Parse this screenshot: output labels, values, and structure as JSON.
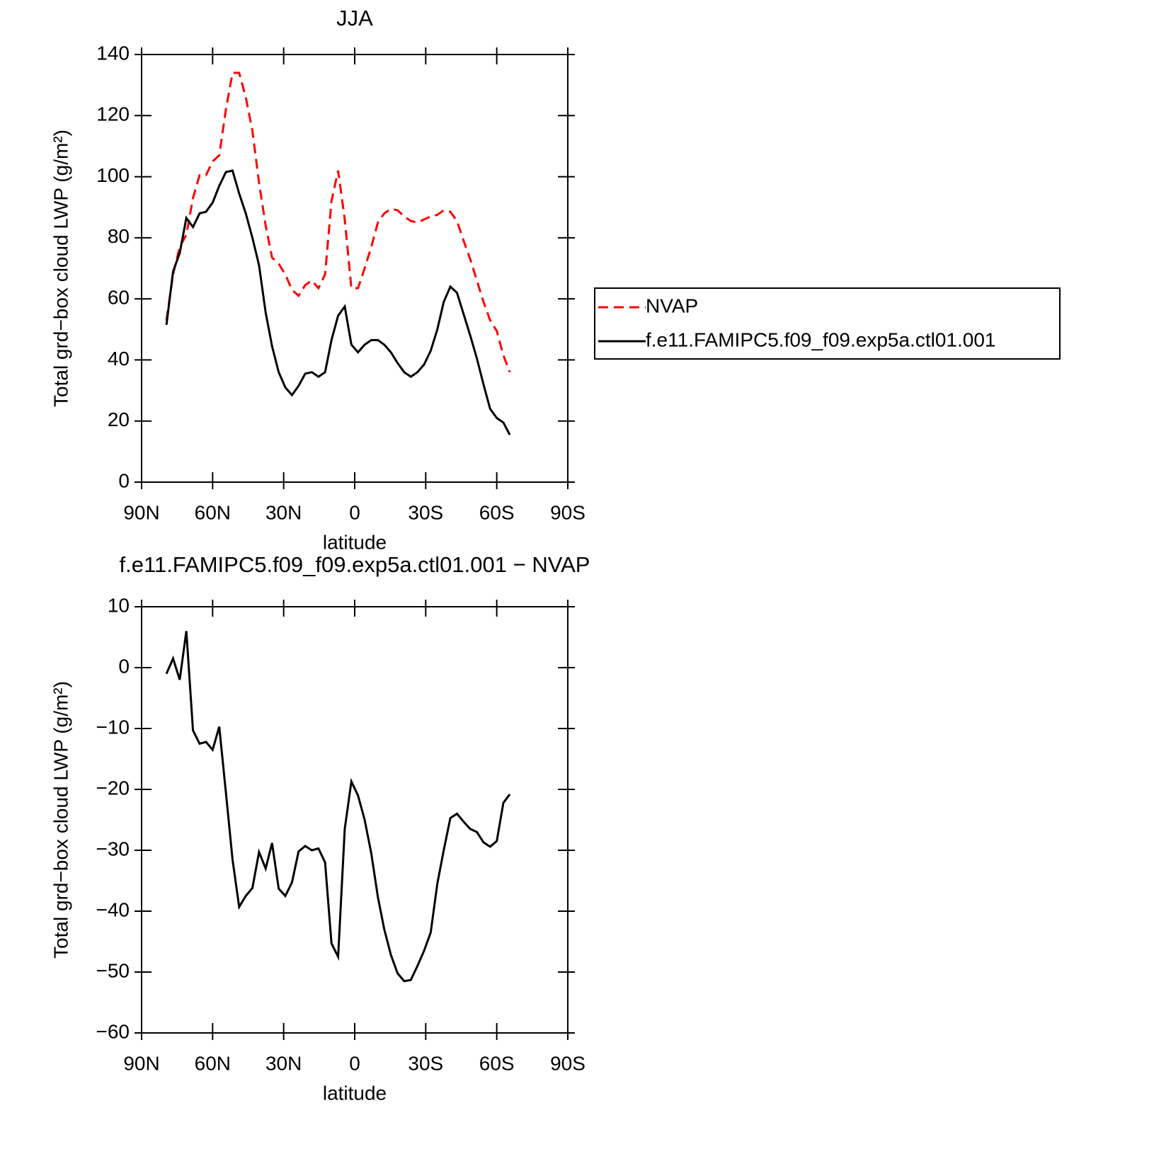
{
  "chart_data": [
    {
      "type": "line",
      "title": "JJA",
      "xlabel": "latitude",
      "ylabel": "Total grd−box cloud LWP (g/m²)",
      "x": [
        79.5,
        76.7,
        73.9,
        71.1,
        68.3,
        65.5,
        62.8,
        60.0,
        57.2,
        54.4,
        51.6,
        48.8,
        46.0,
        43.2,
        40.4,
        37.6,
        34.9,
        32.1,
        29.3,
        26.5,
        23.7,
        20.9,
        18.1,
        15.3,
        12.5,
        9.8,
        7.0,
        4.2,
        1.4,
        -1.4,
        -4.2,
        -7.0,
        -9.8,
        -12.5,
        -15.3,
        -18.1,
        -20.9,
        -23.7,
        -26.5,
        -29.3,
        -32.1,
        -34.9,
        -37.6,
        -40.4,
        -43.2,
        -46.0,
        -48.8,
        -51.6,
        -54.4,
        -57.2,
        -60.0,
        -62.8,
        -65.5
      ],
      "series": [
        {
          "name": "NVAP",
          "color": "#ff0000",
          "dash": true,
          "values": [
            53,
            68,
            77,
            81,
            93,
            100.5,
            100.5,
            105,
            107,
            122,
            134,
            134,
            126,
            115,
            98,
            84,
            73.5,
            71.5,
            68,
            63,
            61,
            64.5,
            66,
            63.5,
            68,
            92,
            102,
            86,
            63.5,
            63.5,
            70,
            77,
            85,
            88,
            89.5,
            89,
            87,
            85.5,
            85,
            86,
            87,
            87.5,
            89,
            88.5,
            85.5,
            79,
            73,
            66,
            59,
            53,
            49.5,
            41.5,
            36
          ]
        },
        {
          "name": "f.e11.FAMIPC5.f09_f09.exp5a.ctl01.001",
          "color": "#000000",
          "dash": false,
          "values": [
            51.5,
            69,
            75,
            86.5,
            83.5,
            88,
            88.5,
            91.5,
            97,
            101.5,
            102,
            94.5,
            88,
            80,
            71,
            55.5,
            44.5,
            36,
            31,
            28.5,
            31.5,
            35.5,
            36,
            34.5,
            36,
            46.5,
            54.5,
            57.5,
            45,
            42.5,
            45,
            46.5,
            46.5,
            45,
            42.5,
            39,
            36,
            34.5,
            36,
            38.5,
            43,
            50,
            59,
            64,
            62,
            55,
            48,
            40.5,
            32,
            24,
            21,
            19.5,
            15.5
          ]
        }
      ],
      "xlim": [
        90,
        -90
      ],
      "xticks": [
        {
          "value": 90,
          "label": "90N"
        },
        {
          "value": 60,
          "label": "60N"
        },
        {
          "value": 30,
          "label": "30N"
        },
        0,
        {
          "value": -30,
          "label": "30S"
        },
        {
          "value": -60,
          "label": "60S"
        },
        {
          "value": -90,
          "label": "90S"
        }
      ],
      "ylim": [
        0,
        140
      ],
      "yticks": [
        0,
        20,
        40,
        60,
        80,
        100,
        120,
        140
      ],
      "legend": "right"
    },
    {
      "type": "line",
      "title": "f.e11.FAMIPC5.f09_f09.exp5a.ctl01.001 − NVAP",
      "xlabel": "latitude",
      "ylabel": "Total grd−box cloud LWP (g/m²)",
      "x": [
        79.5,
        76.7,
        73.9,
        71.1,
        68.3,
        65.5,
        62.8,
        60.0,
        57.2,
        54.4,
        51.6,
        48.8,
        46.0,
        43.2,
        40.4,
        37.6,
        34.9,
        32.1,
        29.3,
        26.5,
        23.7,
        20.9,
        18.1,
        15.3,
        12.5,
        9.8,
        7.0,
        4.2,
        1.4,
        -1.4,
        -4.2,
        -7.0,
        -9.8,
        -12.5,
        -15.3,
        -18.1,
        -20.9,
        -23.7,
        -26.5,
        -29.3,
        -32.1,
        -34.9,
        -37.6,
        -40.4,
        -43.2,
        -46.0,
        -48.8,
        -51.6,
        -54.4,
        -57.2,
        -60.0,
        -62.8,
        -65.5
      ],
      "values": [
        -1,
        1.5,
        -2,
        6,
        -10.3,
        -12.5,
        -12.2,
        -13.5,
        -9.7,
        -20.5,
        -31.5,
        -39.3,
        -37.5,
        -36.2,
        -30.3,
        -33,
        -28.8,
        -36.3,
        -37.5,
        -35.3,
        -30.2,
        -29.3,
        -30,
        -29.7,
        -32,
        -45.3,
        -47.5,
        -26.5,
        -18.7,
        -21,
        -25,
        -30.5,
        -37.7,
        -43,
        -47.2,
        -50.2,
        -51.5,
        -51.3,
        -49,
        -46.5,
        -43.5,
        -35.5,
        -30,
        -24.7,
        -24,
        -25.3,
        -26.5,
        -27,
        -28.7,
        -29.4,
        -28.5,
        -22.2,
        -20.8
      ],
      "color": "#000000",
      "xlim": [
        90,
        -90
      ],
      "xticks": [
        {
          "value": 90,
          "label": "90N"
        },
        {
          "value": 60,
          "label": "60N"
        },
        {
          "value": 30,
          "label": "30N"
        },
        0,
        {
          "value": -30,
          "label": "30S"
        },
        {
          "value": -60,
          "label": "60S"
        },
        {
          "value": -90,
          "label": "90S"
        }
      ],
      "ylim": [
        -60,
        10
      ],
      "yticks": [
        {
          "value": -60,
          "label": "−60"
        },
        {
          "value": -50,
          "label": "−50"
        },
        {
          "value": -40,
          "label": "−40"
        },
        {
          "value": -30,
          "label": "−30"
        },
        {
          "value": -20,
          "label": "−20"
        },
        {
          "value": -10,
          "label": "−10"
        },
        0,
        10
      ]
    }
  ]
}
